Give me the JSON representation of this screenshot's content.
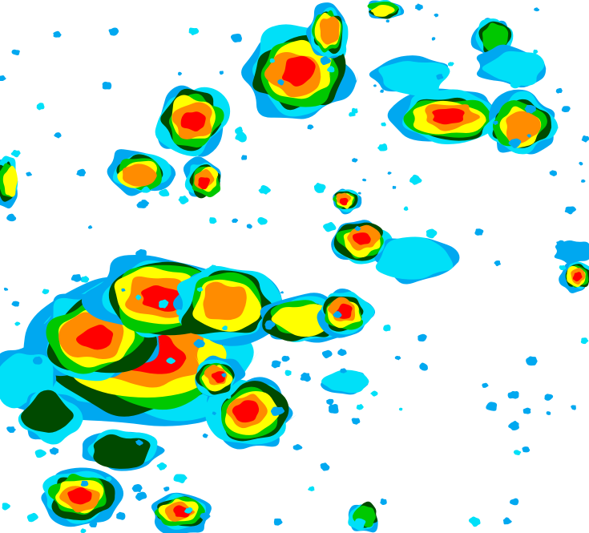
{
  "map": {
    "background_color": "#ffffff",
    "intensity_colors": [
      "#00a8f0",
      "#00e0f8",
      "#004a00",
      "#00c800",
      "#ffff00",
      "#ff8c00",
      "#ff0000"
    ]
  }
}
